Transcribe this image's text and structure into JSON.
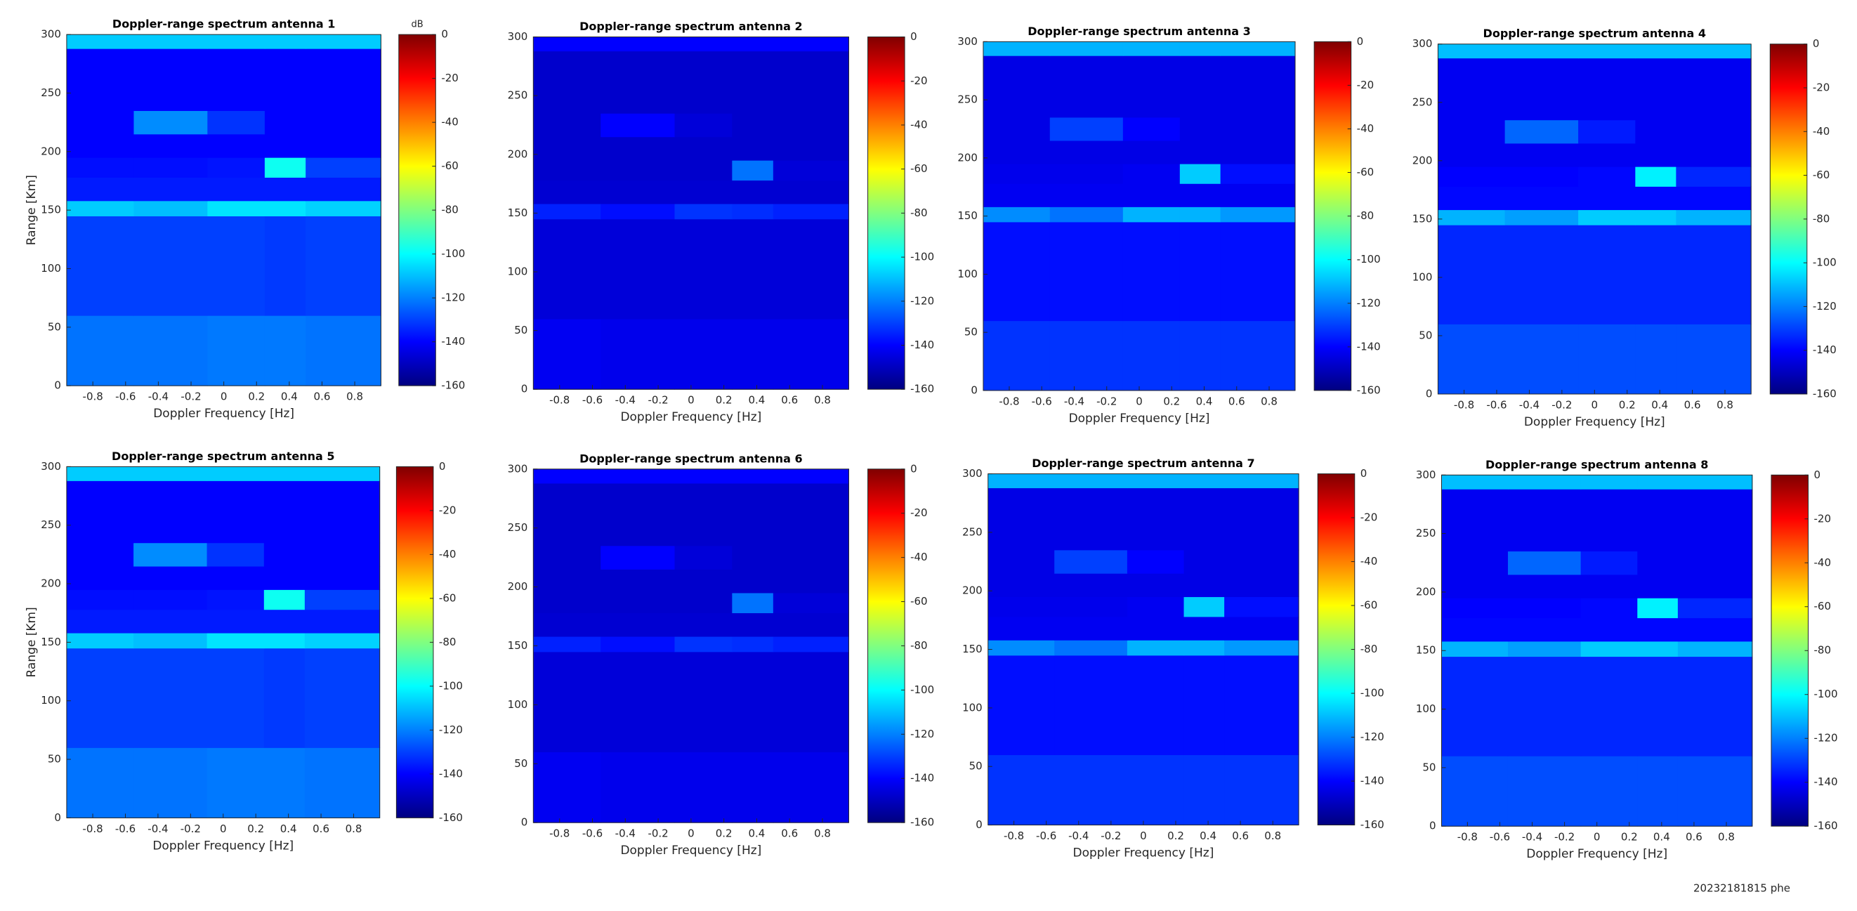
{
  "chart_data": [
    {
      "type": "heatmap",
      "title": "Doppler-range spectrum antenna 1",
      "xlabel": "Doppler Frequency [Hz]",
      "ylabel": "Range [Km]",
      "clabel": "dB",
      "colormap": "jet",
      "xbins": [
        -0.96,
        -0.55,
        -0.1,
        0.25,
        0.5,
        0.96
      ],
      "ybins": [
        0,
        60,
        145,
        158,
        178,
        195,
        215,
        235,
        288,
        300
      ],
      "z": [
        [
          -122,
          -122,
          -121,
          -121,
          -122
        ],
        [
          -130,
          -130,
          -130,
          -131,
          -130
        ],
        [
          -108,
          -110,
          -104,
          -104,
          -107
        ],
        [
          -136,
          -136,
          -136,
          -136,
          -136
        ],
        [
          -138,
          -138,
          -137,
          -98,
          -130
        ],
        [
          -140,
          -140,
          -140,
          -140,
          -140
        ],
        [
          -140,
          -118,
          -132,
          -140,
          -140
        ],
        [
          -140,
          -140,
          -140,
          -140,
          -140
        ],
        [
          -108,
          -108,
          -108,
          -108,
          -108
        ]
      ],
      "xlim": [
        -0.96,
        0.96
      ],
      "ylim": [
        0,
        300
      ],
      "xticks": [
        -0.8,
        -0.6,
        -0.4,
        -0.2,
        0,
        0.2,
        0.4,
        0.6,
        0.8
      ],
      "yticks": [
        0,
        50,
        100,
        150,
        200,
        250,
        300
      ],
      "clim": [
        -160,
        0
      ],
      "cticks": [
        0,
        -20,
        -40,
        -60,
        -80,
        -100,
        -120,
        -140,
        -160
      ]
    },
    {
      "type": "heatmap",
      "title": "Doppler-range spectrum antenna 2",
      "xlabel": "Doppler Frequency [Hz]",
      "colormap": "jet",
      "xbins": [
        -0.96,
        -0.55,
        -0.1,
        0.25,
        0.5,
        0.96
      ],
      "ybins": [
        0,
        60,
        145,
        158,
        178,
        195,
        215,
        235,
        288,
        300
      ],
      "z": [
        [
          -142,
          -143,
          -143,
          -143,
          -143
        ],
        [
          -146,
          -146,
          -146,
          -146,
          -146
        ],
        [
          -135,
          -138,
          -132,
          -133,
          -135
        ],
        [
          -147,
          -147,
          -147,
          -147,
          -147
        ],
        [
          -148,
          -148,
          -148,
          -122,
          -146
        ],
        [
          -148,
          -148,
          -148,
          -148,
          -148
        ],
        [
          -148,
          -140,
          -146,
          -148,
          -148
        ],
        [
          -148,
          -148,
          -148,
          -148,
          -148
        ],
        [
          -140,
          -140,
          -140,
          -140,
          -140
        ]
      ],
      "xlim": [
        -0.96,
        0.96
      ],
      "ylim": [
        0,
        300
      ],
      "xticks": [
        -0.8,
        -0.6,
        -0.4,
        -0.2,
        0,
        0.2,
        0.4,
        0.6,
        0.8
      ],
      "yticks": [
        0,
        50,
        100,
        150,
        200,
        250,
        300
      ],
      "clim": [
        -160,
        0
      ],
      "cticks": [
        0,
        -20,
        -40,
        -60,
        -80,
        -100,
        -120,
        -140,
        -160
      ]
    },
    {
      "type": "heatmap",
      "title": "Doppler-range spectrum antenna 3",
      "xlabel": "Doppler Frequency [Hz]",
      "colormap": "jet",
      "xbins": [
        -0.96,
        -0.55,
        -0.1,
        0.25,
        0.5,
        0.96
      ],
      "ybins": [
        0,
        60,
        145,
        158,
        178,
        195,
        215,
        235,
        288,
        300
      ],
      "z": [
        [
          -132,
          -132,
          -132,
          -132,
          -132
        ],
        [
          -138,
          -138,
          -138,
          -138,
          -138
        ],
        [
          -118,
          -122,
          -112,
          -112,
          -116
        ],
        [
          -142,
          -142,
          -142,
          -142,
          -142
        ],
        [
          -143,
          -143,
          -142,
          -108,
          -138
        ],
        [
          -144,
          -144,
          -144,
          -144,
          -144
        ],
        [
          -144,
          -130,
          -140,
          -144,
          -144
        ],
        [
          -144,
          -144,
          -144,
          -144,
          -144
        ],
        [
          -112,
          -112,
          -112,
          -112,
          -112
        ]
      ],
      "xlim": [
        -0.96,
        0.96
      ],
      "ylim": [
        0,
        300
      ],
      "xticks": [
        -0.8,
        -0.6,
        -0.4,
        -0.2,
        0,
        0.2,
        0.4,
        0.6,
        0.8
      ],
      "yticks": [
        0,
        50,
        100,
        150,
        200,
        250,
        300
      ],
      "clim": [
        -160,
        0
      ],
      "cticks": [
        0,
        -20,
        -40,
        -60,
        -80,
        -100,
        -120,
        -140,
        -160
      ]
    },
    {
      "type": "heatmap",
      "title": "Doppler-range spectrum antenna 4",
      "xlabel": "Doppler Frequency [Hz]",
      "colormap": "jet",
      "xbins": [
        -0.96,
        -0.55,
        -0.1,
        0.25,
        0.5,
        0.96
      ],
      "ybins": [
        0,
        60,
        145,
        158,
        178,
        195,
        215,
        235,
        288,
        300
      ],
      "z": [
        [
          -128,
          -128,
          -128,
          -128,
          -128
        ],
        [
          -134,
          -134,
          -134,
          -134,
          -134
        ],
        [
          -112,
          -115,
          -108,
          -108,
          -112
        ],
        [
          -139,
          -139,
          -139,
          -139,
          -139
        ],
        [
          -140,
          -140,
          -139,
          -102,
          -134
        ],
        [
          -142,
          -142,
          -142,
          -142,
          -142
        ],
        [
          -142,
          -124,
          -136,
          -142,
          -142
        ],
        [
          -142,
          -142,
          -142,
          -142,
          -142
        ],
        [
          -110,
          -110,
          -110,
          -110,
          -110
        ]
      ],
      "xlim": [
        -0.96,
        0.96
      ],
      "ylim": [
        0,
        300
      ],
      "xticks": [
        -0.8,
        -0.6,
        -0.4,
        -0.2,
        0,
        0.2,
        0.4,
        0.6,
        0.8
      ],
      "yticks": [
        0,
        50,
        100,
        150,
        200,
        250,
        300
      ],
      "clim": [
        -160,
        0
      ],
      "cticks": [
        0,
        -20,
        -40,
        -60,
        -80,
        -100,
        -120,
        -140,
        -160
      ]
    },
    {
      "type": "heatmap",
      "title": "Doppler-range spectrum antenna 5",
      "xlabel": "Doppler Frequency [Hz]",
      "ylabel": "Range [Km]",
      "colormap": "jet",
      "xbins": [
        -0.96,
        -0.55,
        -0.1,
        0.25,
        0.5,
        0.96
      ],
      "ybins": [
        0,
        60,
        145,
        158,
        178,
        195,
        215,
        235,
        288,
        300
      ],
      "z": [
        [
          -122,
          -122,
          -121,
          -121,
          -122
        ],
        [
          -130,
          -130,
          -130,
          -131,
          -130
        ],
        [
          -108,
          -110,
          -104,
          -104,
          -107
        ],
        [
          -136,
          -136,
          -136,
          -136,
          -136
        ],
        [
          -138,
          -138,
          -137,
          -98,
          -130
        ],
        [
          -140,
          -140,
          -140,
          -140,
          -140
        ],
        [
          -140,
          -118,
          -132,
          -140,
          -140
        ],
        [
          -140,
          -140,
          -140,
          -140,
          -140
        ],
        [
          -108,
          -108,
          -108,
          -108,
          -108
        ]
      ],
      "xlim": [
        -0.96,
        0.96
      ],
      "ylim": [
        0,
        300
      ],
      "xticks": [
        -0.8,
        -0.6,
        -0.4,
        -0.2,
        0,
        0.2,
        0.4,
        0.6,
        0.8
      ],
      "yticks": [
        0,
        50,
        100,
        150,
        200,
        250,
        300
      ],
      "clim": [
        -160,
        0
      ],
      "cticks": [
        0,
        -20,
        -40,
        -60,
        -80,
        -100,
        -120,
        -140,
        -160
      ]
    },
    {
      "type": "heatmap",
      "title": "Doppler-range spectrum antenna 6",
      "xlabel": "Doppler Frequency [Hz]",
      "colormap": "jet",
      "xbins": [
        -0.96,
        -0.55,
        -0.1,
        0.25,
        0.5,
        0.96
      ],
      "ybins": [
        0,
        60,
        145,
        158,
        178,
        195,
        215,
        235,
        288,
        300
      ],
      "z": [
        [
          -142,
          -143,
          -143,
          -143,
          -143
        ],
        [
          -146,
          -146,
          -146,
          -146,
          -146
        ],
        [
          -135,
          -138,
          -132,
          -133,
          -135
        ],
        [
          -147,
          -147,
          -147,
          -147,
          -147
        ],
        [
          -148,
          -148,
          -148,
          -122,
          -146
        ],
        [
          -148,
          -148,
          -148,
          -148,
          -148
        ],
        [
          -148,
          -140,
          -146,
          -148,
          -148
        ],
        [
          -148,
          -148,
          -148,
          -148,
          -148
        ],
        [
          -140,
          -140,
          -140,
          -140,
          -140
        ]
      ],
      "xlim": [
        -0.96,
        0.96
      ],
      "ylim": [
        0,
        300
      ],
      "xticks": [
        -0.8,
        -0.6,
        -0.4,
        -0.2,
        0,
        0.2,
        0.4,
        0.6,
        0.8
      ],
      "yticks": [
        0,
        50,
        100,
        150,
        200,
        250,
        300
      ],
      "clim": [
        -160,
        0
      ],
      "cticks": [
        0,
        -20,
        -40,
        -60,
        -80,
        -100,
        -120,
        -140,
        -160
      ]
    },
    {
      "type": "heatmap",
      "title": "Doppler-range spectrum antenna 7",
      "xlabel": "Doppler Frequency [Hz]",
      "colormap": "jet",
      "xbins": [
        -0.96,
        -0.55,
        -0.1,
        0.25,
        0.5,
        0.96
      ],
      "ybins": [
        0,
        60,
        145,
        158,
        178,
        195,
        215,
        235,
        288,
        300
      ],
      "z": [
        [
          -132,
          -132,
          -132,
          -132,
          -132
        ],
        [
          -138,
          -138,
          -138,
          -138,
          -138
        ],
        [
          -118,
          -122,
          -112,
          -112,
          -116
        ],
        [
          -142,
          -142,
          -142,
          -142,
          -142
        ],
        [
          -143,
          -143,
          -142,
          -108,
          -138
        ],
        [
          -144,
          -144,
          -144,
          -144,
          -144
        ],
        [
          -144,
          -130,
          -140,
          -144,
          -144
        ],
        [
          -144,
          -144,
          -144,
          -144,
          -144
        ],
        [
          -112,
          -112,
          -112,
          -112,
          -112
        ]
      ],
      "xlim": [
        -0.96,
        0.96
      ],
      "ylim": [
        0,
        300
      ],
      "xticks": [
        -0.8,
        -0.6,
        -0.4,
        -0.2,
        0,
        0.2,
        0.4,
        0.6,
        0.8
      ],
      "yticks": [
        0,
        50,
        100,
        150,
        200,
        250,
        300
      ],
      "clim": [
        -160,
        0
      ],
      "cticks": [
        0,
        -20,
        -40,
        -60,
        -80,
        -100,
        -120,
        -140,
        -160
      ]
    },
    {
      "type": "heatmap",
      "title": "Doppler-range spectrum antenna 8",
      "xlabel": "Doppler Frequency [Hz]",
      "colormap": "jet",
      "xbins": [
        -0.96,
        -0.55,
        -0.1,
        0.25,
        0.5,
        0.96
      ],
      "ybins": [
        0,
        60,
        145,
        158,
        178,
        195,
        215,
        235,
        288,
        300
      ],
      "z": [
        [
          -128,
          -128,
          -128,
          -128,
          -128
        ],
        [
          -134,
          -134,
          -134,
          -134,
          -134
        ],
        [
          -112,
          -115,
          -108,
          -108,
          -112
        ],
        [
          -139,
          -139,
          -139,
          -139,
          -139
        ],
        [
          -140,
          -140,
          -139,
          -102,
          -134
        ],
        [
          -142,
          -142,
          -142,
          -142,
          -142
        ],
        [
          -142,
          -124,
          -136,
          -142,
          -142
        ],
        [
          -142,
          -142,
          -142,
          -142,
          -142
        ],
        [
          -110,
          -110,
          -110,
          -110,
          -110
        ]
      ],
      "xlim": [
        -0.96,
        0.96
      ],
      "ylim": [
        0,
        300
      ],
      "xticks": [
        -0.8,
        -0.6,
        -0.4,
        -0.2,
        0,
        0.2,
        0.4,
        0.6,
        0.8
      ],
      "yticks": [
        0,
        50,
        100,
        150,
        200,
        250,
        300
      ],
      "clim": [
        -160,
        0
      ],
      "cticks": [
        0,
        -20,
        -40,
        -60,
        -80,
        -100,
        -120,
        -140,
        -160
      ]
    }
  ],
  "footer": "20232181815 phe"
}
